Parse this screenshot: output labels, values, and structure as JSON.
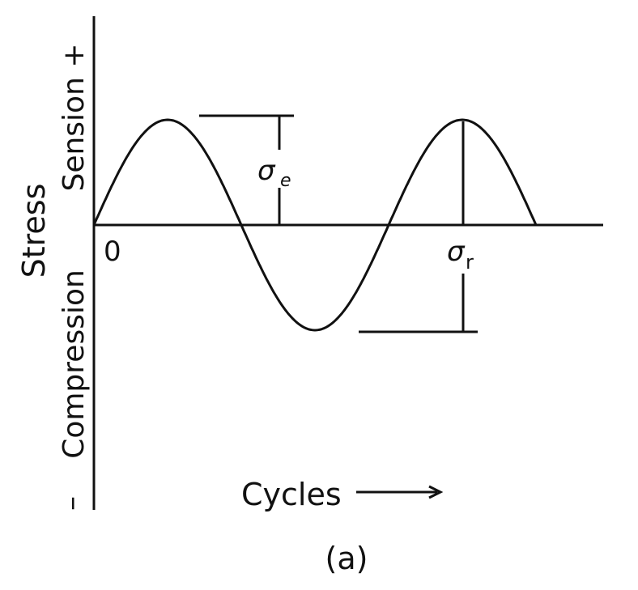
{
  "diagram": {
    "y_axis_label": "Stress",
    "y_positive_label": "Sension +",
    "y_negative_label": "Compression",
    "y_negative_sign": "–",
    "origin_label": "0",
    "x_axis_label": "Cycles",
    "sigma_e_symbol": "σ",
    "sigma_e_subscript": "e",
    "sigma_r_symbol": "σ",
    "sigma_r_subscript": "r",
    "caption": "(a)",
    "curve": {
      "type": "sine",
      "cycles_shown": 1.5
    },
    "line_color": "#111111"
  }
}
